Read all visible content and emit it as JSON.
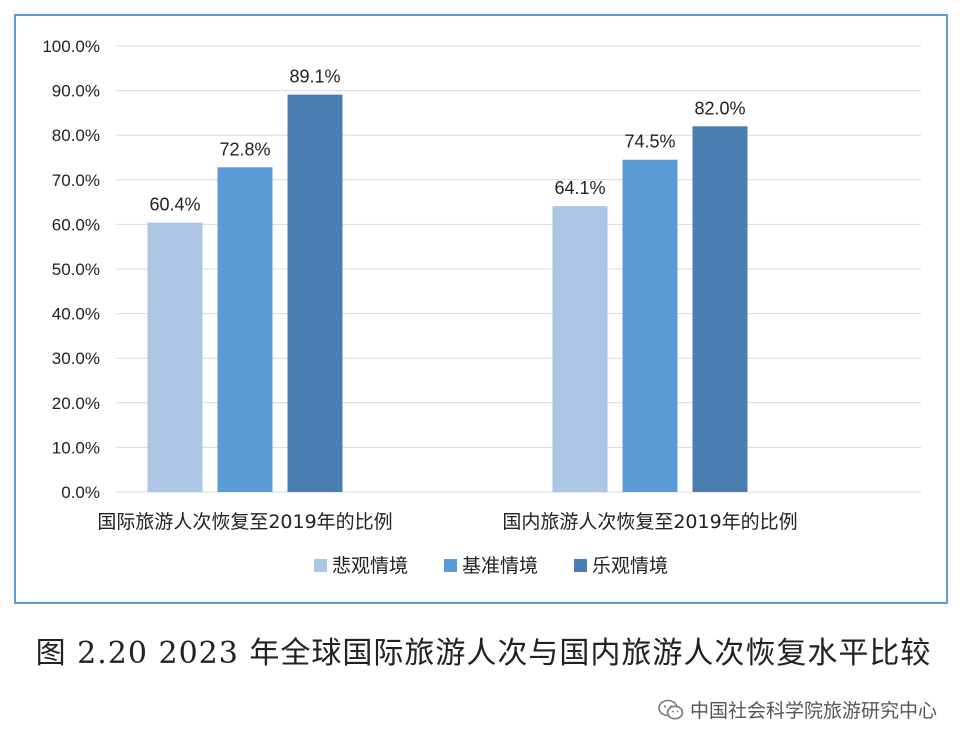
{
  "caption": "图 2.20 2023 年全球国际旅游人次与国内旅游人次恢复水平比较",
  "watermark": "中国社会科学院旅游研究中心",
  "watermark_icon": "wechat-icon",
  "colors": {
    "frame": "#5b9bd5",
    "grid": "#d9d9d9",
    "text": "#222222"
  },
  "chart_data": {
    "type": "bar",
    "categories": [
      "国际旅游人次恢复至2019年的比例",
      "国内旅游人次恢复至2019年的比例"
    ],
    "series": [
      {
        "name": "悲观情境",
        "values": [
          60.4,
          64.1
        ],
        "labels": [
          "60.4%",
          "64.1%"
        ],
        "color": "#adc6e5"
      },
      {
        "name": "基准情境",
        "values": [
          72.8,
          74.5
        ],
        "labels": [
          "72.8%",
          "74.5%"
        ],
        "color": "#5b9bd5"
      },
      {
        "name": "乐观情境",
        "values": [
          89.1,
          82.0
        ],
        "labels": [
          "89.1%",
          "82.0%"
        ],
        "color": "#4a7eb0"
      }
    ],
    "ylim": [
      0,
      100
    ],
    "yticks": [
      0,
      10,
      20,
      30,
      40,
      50,
      60,
      70,
      80,
      90,
      100
    ],
    "ytick_labels": [
      "0.0%",
      "10.0%",
      "20.0%",
      "30.0%",
      "40.0%",
      "50.0%",
      "60.0%",
      "70.0%",
      "80.0%",
      "90.0%",
      "100.0%"
    ],
    "grid": true,
    "legend_position": "bottom"
  }
}
